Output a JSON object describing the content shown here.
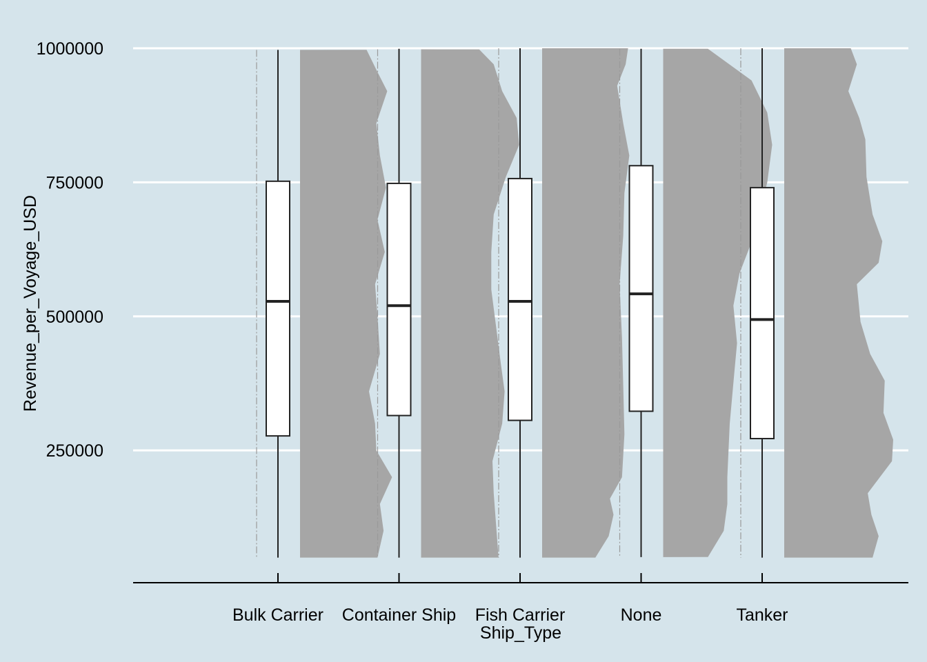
{
  "chart_data": {
    "type": "box",
    "xlabel": "Ship_Type",
    "ylabel": "Revenue_per_Voyage_USD",
    "categories": [
      "Bulk Carrier",
      "Container Ship",
      "Fish Carrier",
      "None",
      "Tanker"
    ],
    "yticks": [
      250000,
      500000,
      750000,
      1000000
    ],
    "ytick_labels": [
      "250000",
      "500000",
      "750000",
      "1000000"
    ],
    "ylim": [
      -10000,
      1000000
    ],
    "grid": "horizontal",
    "boxes": [
      {
        "category": "Bulk Carrier",
        "min": 50000,
        "q1": 277000,
        "median": 528000,
        "q3": 752000,
        "max": 997000
      },
      {
        "category": "Container Ship",
        "min": 50000,
        "q1": 315000,
        "median": 520000,
        "q3": 748000,
        "max": 999000
      },
      {
        "category": "Fish Carrier",
        "min": 50000,
        "q1": 306000,
        "median": 528000,
        "q3": 757000,
        "max": 1000000
      },
      {
        "category": "None",
        "min": 51000,
        "q1": 323000,
        "median": 542000,
        "q3": 781000,
        "max": 999000
      },
      {
        "category": "Tanker",
        "min": 50000,
        "q1": 272000,
        "median": 494000,
        "q3": 740000,
        "max": 1000000
      }
    ],
    "densities": [
      {
        "category": "Bulk Carrier",
        "ymin": 50000,
        "ymax": 997000,
        "profile": [
          [
            50000,
            0.64
          ],
          [
            100000,
            0.69
          ],
          [
            150000,
            0.66
          ],
          [
            200000,
            0.76
          ],
          [
            250000,
            0.63
          ],
          [
            300000,
            0.62
          ],
          [
            360000,
            0.57
          ],
          [
            430000,
            0.66
          ],
          [
            500000,
            0.64
          ],
          [
            560000,
            0.62
          ],
          [
            620000,
            0.7
          ],
          [
            680000,
            0.64
          ],
          [
            740000,
            0.71
          ],
          [
            800000,
            0.66
          ],
          [
            860000,
            0.63
          ],
          [
            920000,
            0.72
          ],
          [
            960000,
            0.63
          ],
          [
            997000,
            0.55
          ]
        ]
      },
      {
        "category": "Container Ship",
        "ymin": 50000,
        "ymax": 998000,
        "profile": [
          [
            50000,
            0.64
          ],
          [
            110000,
            0.62
          ],
          [
            170000,
            0.6
          ],
          [
            230000,
            0.59
          ],
          [
            300000,
            0.67
          ],
          [
            360000,
            0.69
          ],
          [
            410000,
            0.66
          ],
          [
            480000,
            0.62
          ],
          [
            550000,
            0.58
          ],
          [
            620000,
            0.58
          ],
          [
            690000,
            0.6
          ],
          [
            760000,
            0.7
          ],
          [
            820000,
            0.81
          ],
          [
            870000,
            0.79
          ],
          [
            920000,
            0.67
          ],
          [
            970000,
            0.6
          ],
          [
            998000,
            0.48
          ]
        ]
      },
      {
        "category": "Fish Carrier",
        "ymin": 50000,
        "ymax": 1000000,
        "profile": [
          [
            50000,
            0.44
          ],
          [
            90000,
            0.55
          ],
          [
            130000,
            0.59
          ],
          [
            160000,
            0.56
          ],
          [
            200000,
            0.66
          ],
          [
            280000,
            0.68
          ],
          [
            370000,
            0.67
          ],
          [
            460000,
            0.66
          ],
          [
            560000,
            0.64
          ],
          [
            650000,
            0.67
          ],
          [
            730000,
            0.68
          ],
          [
            800000,
            0.72
          ],
          [
            860000,
            0.67
          ],
          [
            930000,
            0.62
          ],
          [
            970000,
            0.69
          ],
          [
            1000000,
            0.71
          ]
        ]
      },
      {
        "category": "None",
        "ymin": 51000,
        "ymax": 999000,
        "profile": [
          [
            51000,
            0.37
          ],
          [
            100000,
            0.5
          ],
          [
            150000,
            0.53
          ],
          [
            200000,
            0.53
          ],
          [
            300000,
            0.55
          ],
          [
            400000,
            0.59
          ],
          [
            450000,
            0.61
          ],
          [
            520000,
            0.58
          ],
          [
            580000,
            0.63
          ],
          [
            650000,
            0.75
          ],
          [
            750000,
            0.86
          ],
          [
            820000,
            0.9
          ],
          [
            880000,
            0.86
          ],
          [
            940000,
            0.73
          ],
          [
            999000,
            0.37
          ]
        ]
      },
      {
        "category": "Tanker",
        "ymin": 50000,
        "ymax": 1000000,
        "profile": [
          [
            50000,
            0.73
          ],
          [
            90000,
            0.78
          ],
          [
            130000,
            0.72
          ],
          [
            170000,
            0.69
          ],
          [
            230000,
            0.89
          ],
          [
            270000,
            0.9
          ],
          [
            320000,
            0.82
          ],
          [
            380000,
            0.83
          ],
          [
            430000,
            0.71
          ],
          [
            490000,
            0.63
          ],
          [
            560000,
            0.6
          ],
          [
            600000,
            0.78
          ],
          [
            640000,
            0.81
          ],
          [
            690000,
            0.73
          ],
          [
            760000,
            0.68
          ],
          [
            830000,
            0.67
          ],
          [
            870000,
            0.62
          ],
          [
            920000,
            0.53
          ],
          [
            970000,
            0.6
          ],
          [
            1000000,
            0.55
          ]
        ]
      }
    ],
    "colors": {
      "background": "#d5e4eb",
      "grid": "#ffffff",
      "density_fill": "#a6a6a6",
      "box_fill": "#ffffff",
      "box_stroke": "#222222",
      "axis": "#000000"
    }
  }
}
